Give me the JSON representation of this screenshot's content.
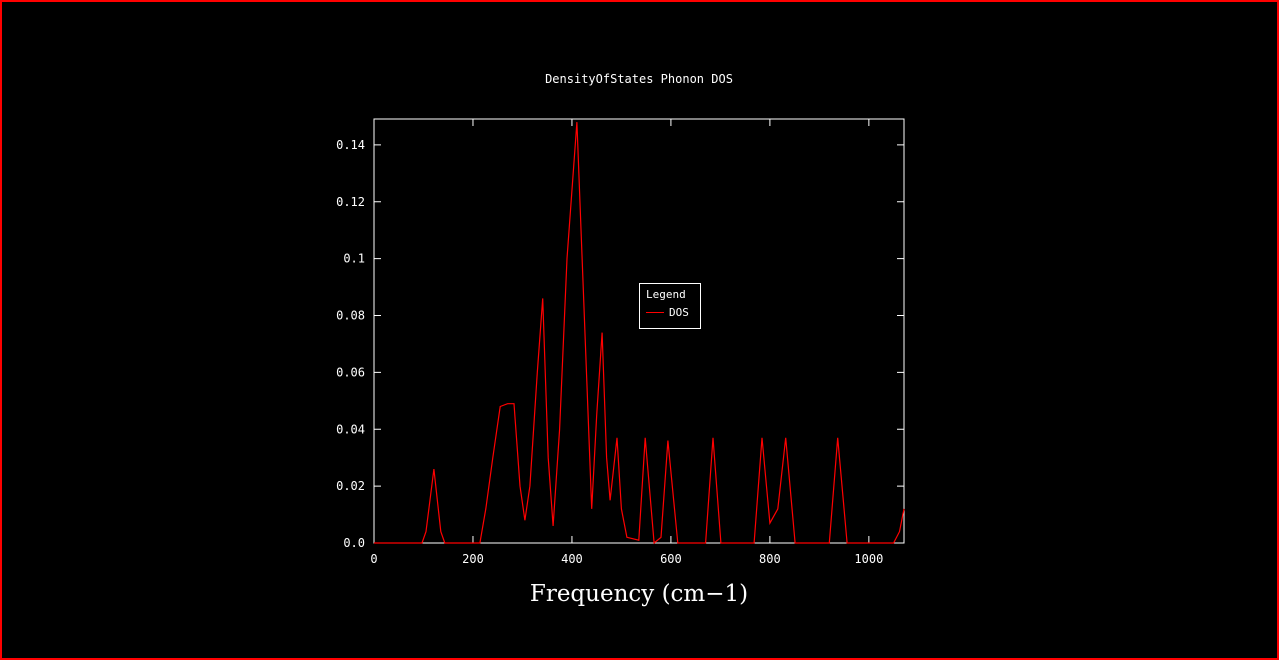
{
  "window": {
    "background_color": "#000000",
    "border_color": "#ff0000"
  },
  "chart_data": {
    "type": "line",
    "title": "DensityOfStates Phonon DOS",
    "xlabel": "Frequency (cm−1)",
    "ylabel": "",
    "grid": false,
    "legend_position": "inside-right-center",
    "legend": {
      "title": "Legend",
      "entries": [
        {
          "label": "DOS",
          "color": "#ff0000"
        }
      ]
    },
    "x_ticks": [
      "0",
      "200",
      "400",
      "600",
      "800",
      "1000"
    ],
    "y_ticks": [
      "0.0",
      "0.02",
      "0.04",
      "0.06",
      "0.08",
      "0.1",
      "0.12",
      "0.14"
    ],
    "x_range": [
      0,
      1071
    ],
    "y_range": [
      0,
      0.1491
    ],
    "line_color": "#ff0000",
    "frame_color": "#ffffff",
    "series": [
      {
        "name": "DOS",
        "points": [
          [
            0,
            0
          ],
          [
            97,
            0
          ],
          [
            105,
            0.004
          ],
          [
            121,
            0.026
          ],
          [
            135,
            0.004
          ],
          [
            143,
            0
          ],
          [
            214,
            0
          ],
          [
            226,
            0.012
          ],
          [
            240,
            0.03
          ],
          [
            255,
            0.048
          ],
          [
            270,
            0.049
          ],
          [
            283,
            0.049
          ],
          [
            295,
            0.02
          ],
          [
            305,
            0.008
          ],
          [
            315,
            0.02
          ],
          [
            330,
            0.06
          ],
          [
            341,
            0.086
          ],
          [
            352,
            0.03
          ],
          [
            362,
            0.006
          ],
          [
            375,
            0.04
          ],
          [
            390,
            0.1
          ],
          [
            410,
            0.148
          ],
          [
            425,
            0.08
          ],
          [
            440,
            0.012
          ],
          [
            450,
            0.045
          ],
          [
            461,
            0.074
          ],
          [
            470,
            0.03
          ],
          [
            477,
            0.015
          ],
          [
            491,
            0.037
          ],
          [
            500,
            0.012
          ],
          [
            511,
            0.002
          ],
          [
            535,
            0.001
          ],
          [
            548,
            0.037
          ],
          [
            566,
            0
          ],
          [
            580,
            0.002
          ],
          [
            594,
            0.036
          ],
          [
            614,
            0
          ],
          [
            670,
            0
          ],
          [
            685,
            0.037
          ],
          [
            701,
            0
          ],
          [
            768,
            0
          ],
          [
            784,
            0.037
          ],
          [
            800,
            0.007
          ],
          [
            816,
            0.012
          ],
          [
            832,
            0.037
          ],
          [
            851,
            0
          ],
          [
            920,
            0
          ],
          [
            937,
            0.037
          ],
          [
            956,
            0
          ],
          [
            1050,
            0
          ],
          [
            1062,
            0.004
          ],
          [
            1071,
            0.012
          ]
        ]
      }
    ]
  }
}
